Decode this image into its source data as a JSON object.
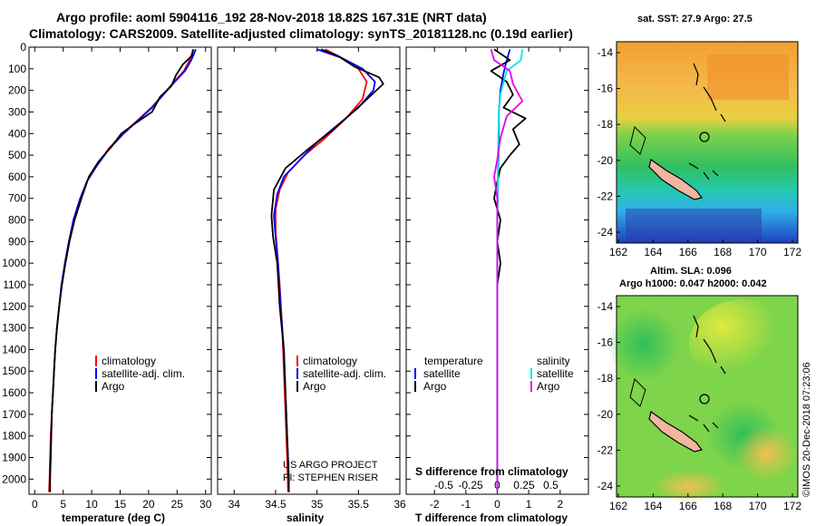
{
  "title": {
    "line1": "Argo profile: aoml 5904116_192 28-Nov-2018 18.82S 167.31E (NRT data)",
    "line2": "Climatology: CARS2009. Satellite-adjusted climatology: synTS_20181128.nc (0.19d earlier)"
  },
  "colors": {
    "climatology": "#ff0000",
    "satellite": "#0000ff",
    "argo": "#000000",
    "sat_salinity": "#00e5e5",
    "argo_salinity": "#e600e6"
  },
  "chart_data": [
    {
      "type": "line",
      "id": "temperature",
      "xlabel": "temperature (deg C)",
      "ylabel": "",
      "xlim": [
        -1,
        31
      ],
      "ylim": [
        2070,
        0
      ],
      "xticks": [
        0,
        5,
        10,
        15,
        20,
        25,
        30
      ],
      "yticks": [
        0,
        100,
        200,
        300,
        400,
        500,
        600,
        700,
        800,
        900,
        1000,
        1100,
        1200,
        1300,
        1400,
        1500,
        1600,
        1700,
        1800,
        1900,
        2000
      ],
      "legend": [
        "climatology",
        "satellite-adj. clim.",
        "Argo"
      ],
      "series": [
        {
          "name": "climatology",
          "points": [
            [
              27.9,
              10
            ],
            [
              27.2,
              60
            ],
            [
              26.2,
              110
            ],
            [
              24.5,
              160
            ],
            [
              22.5,
              220
            ],
            [
              20.5,
              280
            ],
            [
              18.0,
              340
            ],
            [
              15.5,
              400
            ],
            [
              13.0,
              470
            ],
            [
              10.8,
              550
            ],
            [
              9.2,
              620
            ],
            [
              8.0,
              700
            ],
            [
              6.8,
              800
            ],
            [
              6.0,
              900
            ],
            [
              5.3,
              1000
            ],
            [
              4.7,
              1100
            ],
            [
              4.3,
              1200
            ],
            [
              3.9,
              1300
            ],
            [
              3.6,
              1400
            ],
            [
              3.4,
              1500
            ],
            [
              3.2,
              1600
            ],
            [
              3.0,
              1700
            ],
            [
              2.8,
              1800
            ],
            [
              2.7,
              1900
            ],
            [
              2.6,
              2000
            ],
            [
              2.5,
              2060
            ]
          ]
        },
        {
          "name": "satellite-adj. clim.",
          "points": [
            [
              28.3,
              10
            ],
            [
              27.5,
              60
            ],
            [
              26.4,
              110
            ],
            [
              24.6,
              160
            ],
            [
              22.6,
              220
            ],
            [
              20.6,
              280
            ],
            [
              18.1,
              340
            ],
            [
              15.6,
              400
            ],
            [
              13.1,
              470
            ],
            [
              10.9,
              550
            ],
            [
              9.2,
              620
            ],
            [
              8.0,
              700
            ],
            [
              6.8,
              800
            ],
            [
              6.0,
              900
            ],
            [
              5.3,
              1000
            ],
            [
              4.7,
              1100
            ],
            [
              4.3,
              1200
            ],
            [
              3.9,
              1300
            ],
            [
              3.6,
              1400
            ],
            [
              3.4,
              1500
            ],
            [
              3.2,
              1600
            ],
            [
              3.0,
              1700
            ],
            [
              2.9,
              1800
            ],
            [
              2.8,
              1900
            ],
            [
              2.7,
              2000
            ],
            [
              2.7,
              2060
            ]
          ]
        },
        {
          "name": "Argo",
          "points": [
            [
              27.8,
              10
            ],
            [
              27.6,
              40
            ],
            [
              26.0,
              80
            ],
            [
              24.8,
              130
            ],
            [
              24.0,
              180
            ],
            [
              22.0,
              230
            ],
            [
              20.6,
              300
            ],
            [
              17.8,
              350
            ],
            [
              15.2,
              400
            ],
            [
              13.5,
              460
            ],
            [
              11.2,
              530
            ],
            [
              9.5,
              600
            ],
            [
              8.2,
              700
            ],
            [
              7.0,
              800
            ],
            [
              6.1,
              900
            ],
            [
              5.4,
              1000
            ],
            [
              4.8,
              1100
            ],
            [
              4.3,
              1200
            ],
            [
              3.9,
              1300
            ],
            [
              3.6,
              1400
            ],
            [
              3.4,
              1500
            ],
            [
              3.2,
              1600
            ],
            [
              3.0,
              1700
            ],
            [
              2.9,
              1800
            ],
            [
              2.8,
              1900
            ],
            [
              2.7,
              2000
            ],
            [
              2.7,
              2060
            ]
          ]
        }
      ]
    },
    {
      "type": "line",
      "id": "salinity",
      "xlabel": "salinity",
      "ylabel": "",
      "xlim": [
        33.8,
        36.0
      ],
      "ylim": [
        2070,
        0
      ],
      "xticks": [
        34,
        34.5,
        35,
        35.5,
        36
      ],
      "legend": [
        "climatology",
        "satellite-adj. clim.",
        "Argo"
      ],
      "annotation": [
        "US ARGO PROJECT",
        "PI: STEPHEN RISER"
      ],
      "series": [
        {
          "name": "climatology",
          "points": [
            [
              35.1,
              10
            ],
            [
              35.3,
              50
            ],
            [
              35.5,
              100
            ],
            [
              35.6,
              160
            ],
            [
              35.55,
              240
            ],
            [
              35.35,
              330
            ],
            [
              35.1,
              420
            ],
            [
              34.85,
              500
            ],
            [
              34.65,
              580
            ],
            [
              34.55,
              660
            ],
            [
              34.5,
              750
            ],
            [
              34.5,
              850
            ],
            [
              34.52,
              950
            ],
            [
              34.55,
              1100
            ],
            [
              34.58,
              1300
            ],
            [
              34.6,
              1500
            ],
            [
              34.62,
              1700
            ],
            [
              34.64,
              1900
            ],
            [
              34.65,
              2060
            ]
          ]
        },
        {
          "name": "satellite-adj. clim.",
          "points": [
            [
              35.0,
              10
            ],
            [
              35.3,
              50
            ],
            [
              35.55,
              100
            ],
            [
              35.7,
              160
            ],
            [
              35.68,
              200
            ],
            [
              35.5,
              280
            ],
            [
              35.25,
              360
            ],
            [
              35.0,
              440
            ],
            [
              34.8,
              520
            ],
            [
              34.6,
              600
            ],
            [
              34.52,
              680
            ],
            [
              34.48,
              780
            ],
            [
              34.5,
              880
            ],
            [
              34.53,
              1000
            ],
            [
              34.56,
              1200
            ],
            [
              34.6,
              1400
            ],
            [
              34.62,
              1600
            ],
            [
              34.64,
              1800
            ],
            [
              34.66,
              2000
            ],
            [
              34.66,
              2060
            ]
          ]
        },
        {
          "name": "Argo",
          "points": [
            [
              35.05,
              10
            ],
            [
              35.25,
              40
            ],
            [
              35.45,
              90
            ],
            [
              35.75,
              140
            ],
            [
              35.8,
              170
            ],
            [
              35.55,
              260
            ],
            [
              35.2,
              380
            ],
            [
              34.9,
              470
            ],
            [
              34.62,
              560
            ],
            [
              34.48,
              660
            ],
            [
              34.45,
              780
            ],
            [
              34.47,
              880
            ],
            [
              34.52,
              1000
            ],
            [
              34.55,
              1200
            ],
            [
              34.6,
              1400
            ],
            [
              34.62,
              1600
            ],
            [
              34.64,
              1800
            ],
            [
              34.66,
              2000
            ],
            [
              34.66,
              2060
            ]
          ]
        }
      ]
    },
    {
      "type": "line",
      "id": "difference",
      "xlabel": "T difference from climatology",
      "xlabel2": "S difference from climatology",
      "ylabel": "",
      "xlim": [
        -2.9,
        2.9
      ],
      "ylim": [
        2070,
        0
      ],
      "xticks": [
        -2,
        -1,
        0,
        1,
        2
      ],
      "xticks_s": [
        "-0.5",
        "-0.25",
        "0",
        "0.25",
        "0.5"
      ],
      "legend_t": {
        "title": "temperature",
        "items": [
          "satellite",
          "Argo"
        ]
      },
      "legend_s": {
        "title": "salinity",
        "items": [
          "satellite",
          "Argo"
        ]
      },
      "series": [
        {
          "name": "temperature satellite",
          "points": [
            [
              0.4,
              10
            ],
            [
              0.3,
              60
            ],
            [
              0.2,
              120
            ],
            [
              0.1,
              200
            ],
            [
              0.05,
              300
            ],
            [
              0.05,
              400
            ],
            [
              0.02,
              600
            ],
            [
              0.0,
              800
            ],
            [
              0.0,
              1000
            ],
            [
              0.0,
              1500
            ],
            [
              0.0,
              2060
            ]
          ]
        },
        {
          "name": "temperature Argo",
          "points": [
            [
              -0.1,
              10
            ],
            [
              0.4,
              60
            ],
            [
              -0.2,
              110
            ],
            [
              0.3,
              160
            ],
            [
              0.5,
              220
            ],
            [
              0.2,
              280
            ],
            [
              0.9,
              330
            ],
            [
              0.5,
              380
            ],
            [
              0.7,
              450
            ],
            [
              0.4,
              500
            ],
            [
              0.1,
              560
            ],
            [
              0.0,
              620
            ],
            [
              -0.1,
              700
            ],
            [
              0.1,
              800
            ],
            [
              0.0,
              900
            ],
            [
              0.1,
              1000
            ],
            [
              0.0,
              1100
            ],
            [
              0.0,
              1500
            ],
            [
              0.0,
              2060
            ]
          ]
        },
        {
          "name": "salinity satellite",
          "points": [
            [
              0.8,
              10
            ],
            [
              0.75,
              60
            ],
            [
              0.3,
              110
            ],
            [
              0.2,
              160
            ],
            [
              0.1,
              220
            ],
            [
              0.05,
              300
            ],
            [
              0.02,
              500
            ],
            [
              0.0,
              800
            ],
            [
              0.0,
              1200
            ],
            [
              0.0,
              2060
            ]
          ]
        },
        {
          "name": "salinity Argo",
          "points": [
            [
              -0.2,
              10
            ],
            [
              -0.1,
              60
            ],
            [
              0.4,
              110
            ],
            [
              0.5,
              170
            ],
            [
              0.8,
              250
            ],
            [
              0.3,
              320
            ],
            [
              0.1,
              420
            ],
            [
              0.0,
              520
            ],
            [
              -0.1,
              600
            ],
            [
              0.0,
              700
            ],
            [
              0.0,
              900
            ],
            [
              0.0,
              1200
            ],
            [
              0.0,
              2060
            ]
          ]
        }
      ]
    }
  ],
  "maps": [
    {
      "title": "sat. SST: 27.9 Argo: 27.5",
      "xticks": [
        "162",
        "164",
        "166",
        "168",
        "170",
        "172"
      ],
      "yticks": [
        "-14",
        "-16",
        "-18",
        "-20",
        "-22",
        "-24"
      ]
    },
    {
      "title": "Altim. SLA: 0.096",
      "title2": "Argo h1000: 0.047 h2000: 0.042",
      "xticks": [
        "162",
        "164",
        "166",
        "168",
        "170",
        "172"
      ],
      "yticks": [
        "-14",
        "-16",
        "-18",
        "-20",
        "-22",
        "-24"
      ]
    }
  ],
  "credit": "©IMOS 20-Dec-2018 07:23:06"
}
